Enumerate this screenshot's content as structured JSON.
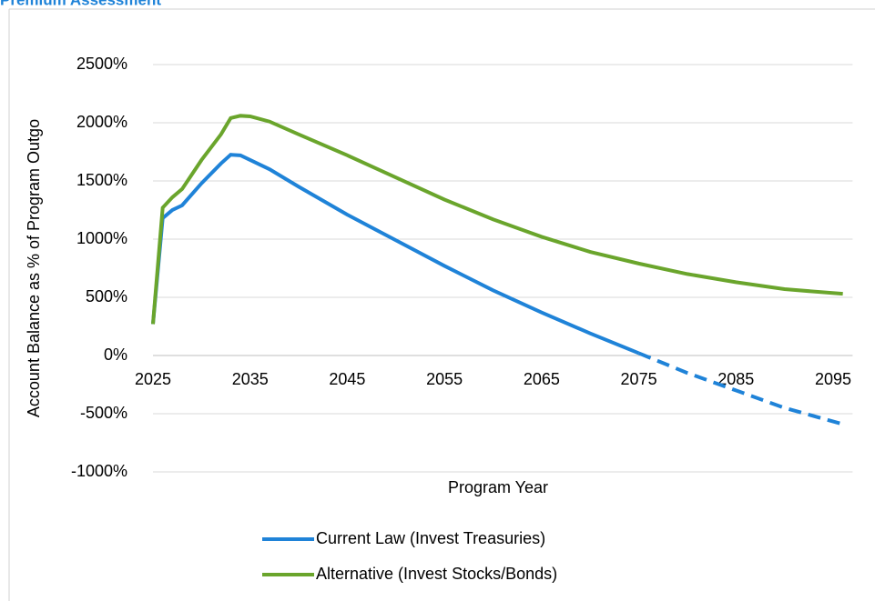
{
  "chart_data": {
    "type": "line",
    "title": "Premium Assessment",
    "x_label": "Program Year",
    "y_label": "Account Balance as % of Program Outgo",
    "x": [
      2025,
      2026,
      2027,
      2028,
      2030,
      2032,
      2033,
      2034,
      2035,
      2037,
      2040,
      2045,
      2050,
      2055,
      2060,
      2065,
      2070,
      2075,
      2080,
      2085,
      2090,
      2096
    ],
    "series": [
      {
        "name": "Current Law (Invest Treasuries)",
        "color": "#1f83d8",
        "values": [
          270,
          1180,
          1250,
          1290,
          1480,
          1650,
          1725,
          1720,
          1680,
          1600,
          1450,
          1210,
          990,
          770,
          560,
          370,
          190,
          20,
          -150,
          -300,
          -450,
          -590
        ]
      },
      {
        "name": "Alternative (Invest Stocks/Bonds)",
        "color": "#6aa52c",
        "values": [
          270,
          1270,
          1360,
          1430,
          1680,
          1900,
          2040,
          2060,
          2055,
          2010,
          1900,
          1720,
          1530,
          1340,
          1170,
          1020,
          890,
          790,
          700,
          630,
          570,
          530
        ]
      }
    ],
    "xlim": [
      2025,
      2097
    ],
    "xticks": [
      2025,
      2035,
      2045,
      2055,
      2065,
      2075,
      2085,
      2095
    ],
    "ylim": [
      -1000,
      2500
    ],
    "yticks": [
      {
        "value": -1000,
        "label": "-1000%"
      },
      {
        "value": -500,
        "label": "-500%"
      },
      {
        "value": 0,
        "label": "0%"
      },
      {
        "value": 500,
        "label": "500%"
      },
      {
        "value": 1000,
        "label": "1000%"
      },
      {
        "value": 1500,
        "label": "1500%"
      },
      {
        "value": 2000,
        "label": "2000%"
      },
      {
        "value": 2500,
        "label": "2500%"
      }
    ],
    "grid": true,
    "legend": "bottom"
  }
}
